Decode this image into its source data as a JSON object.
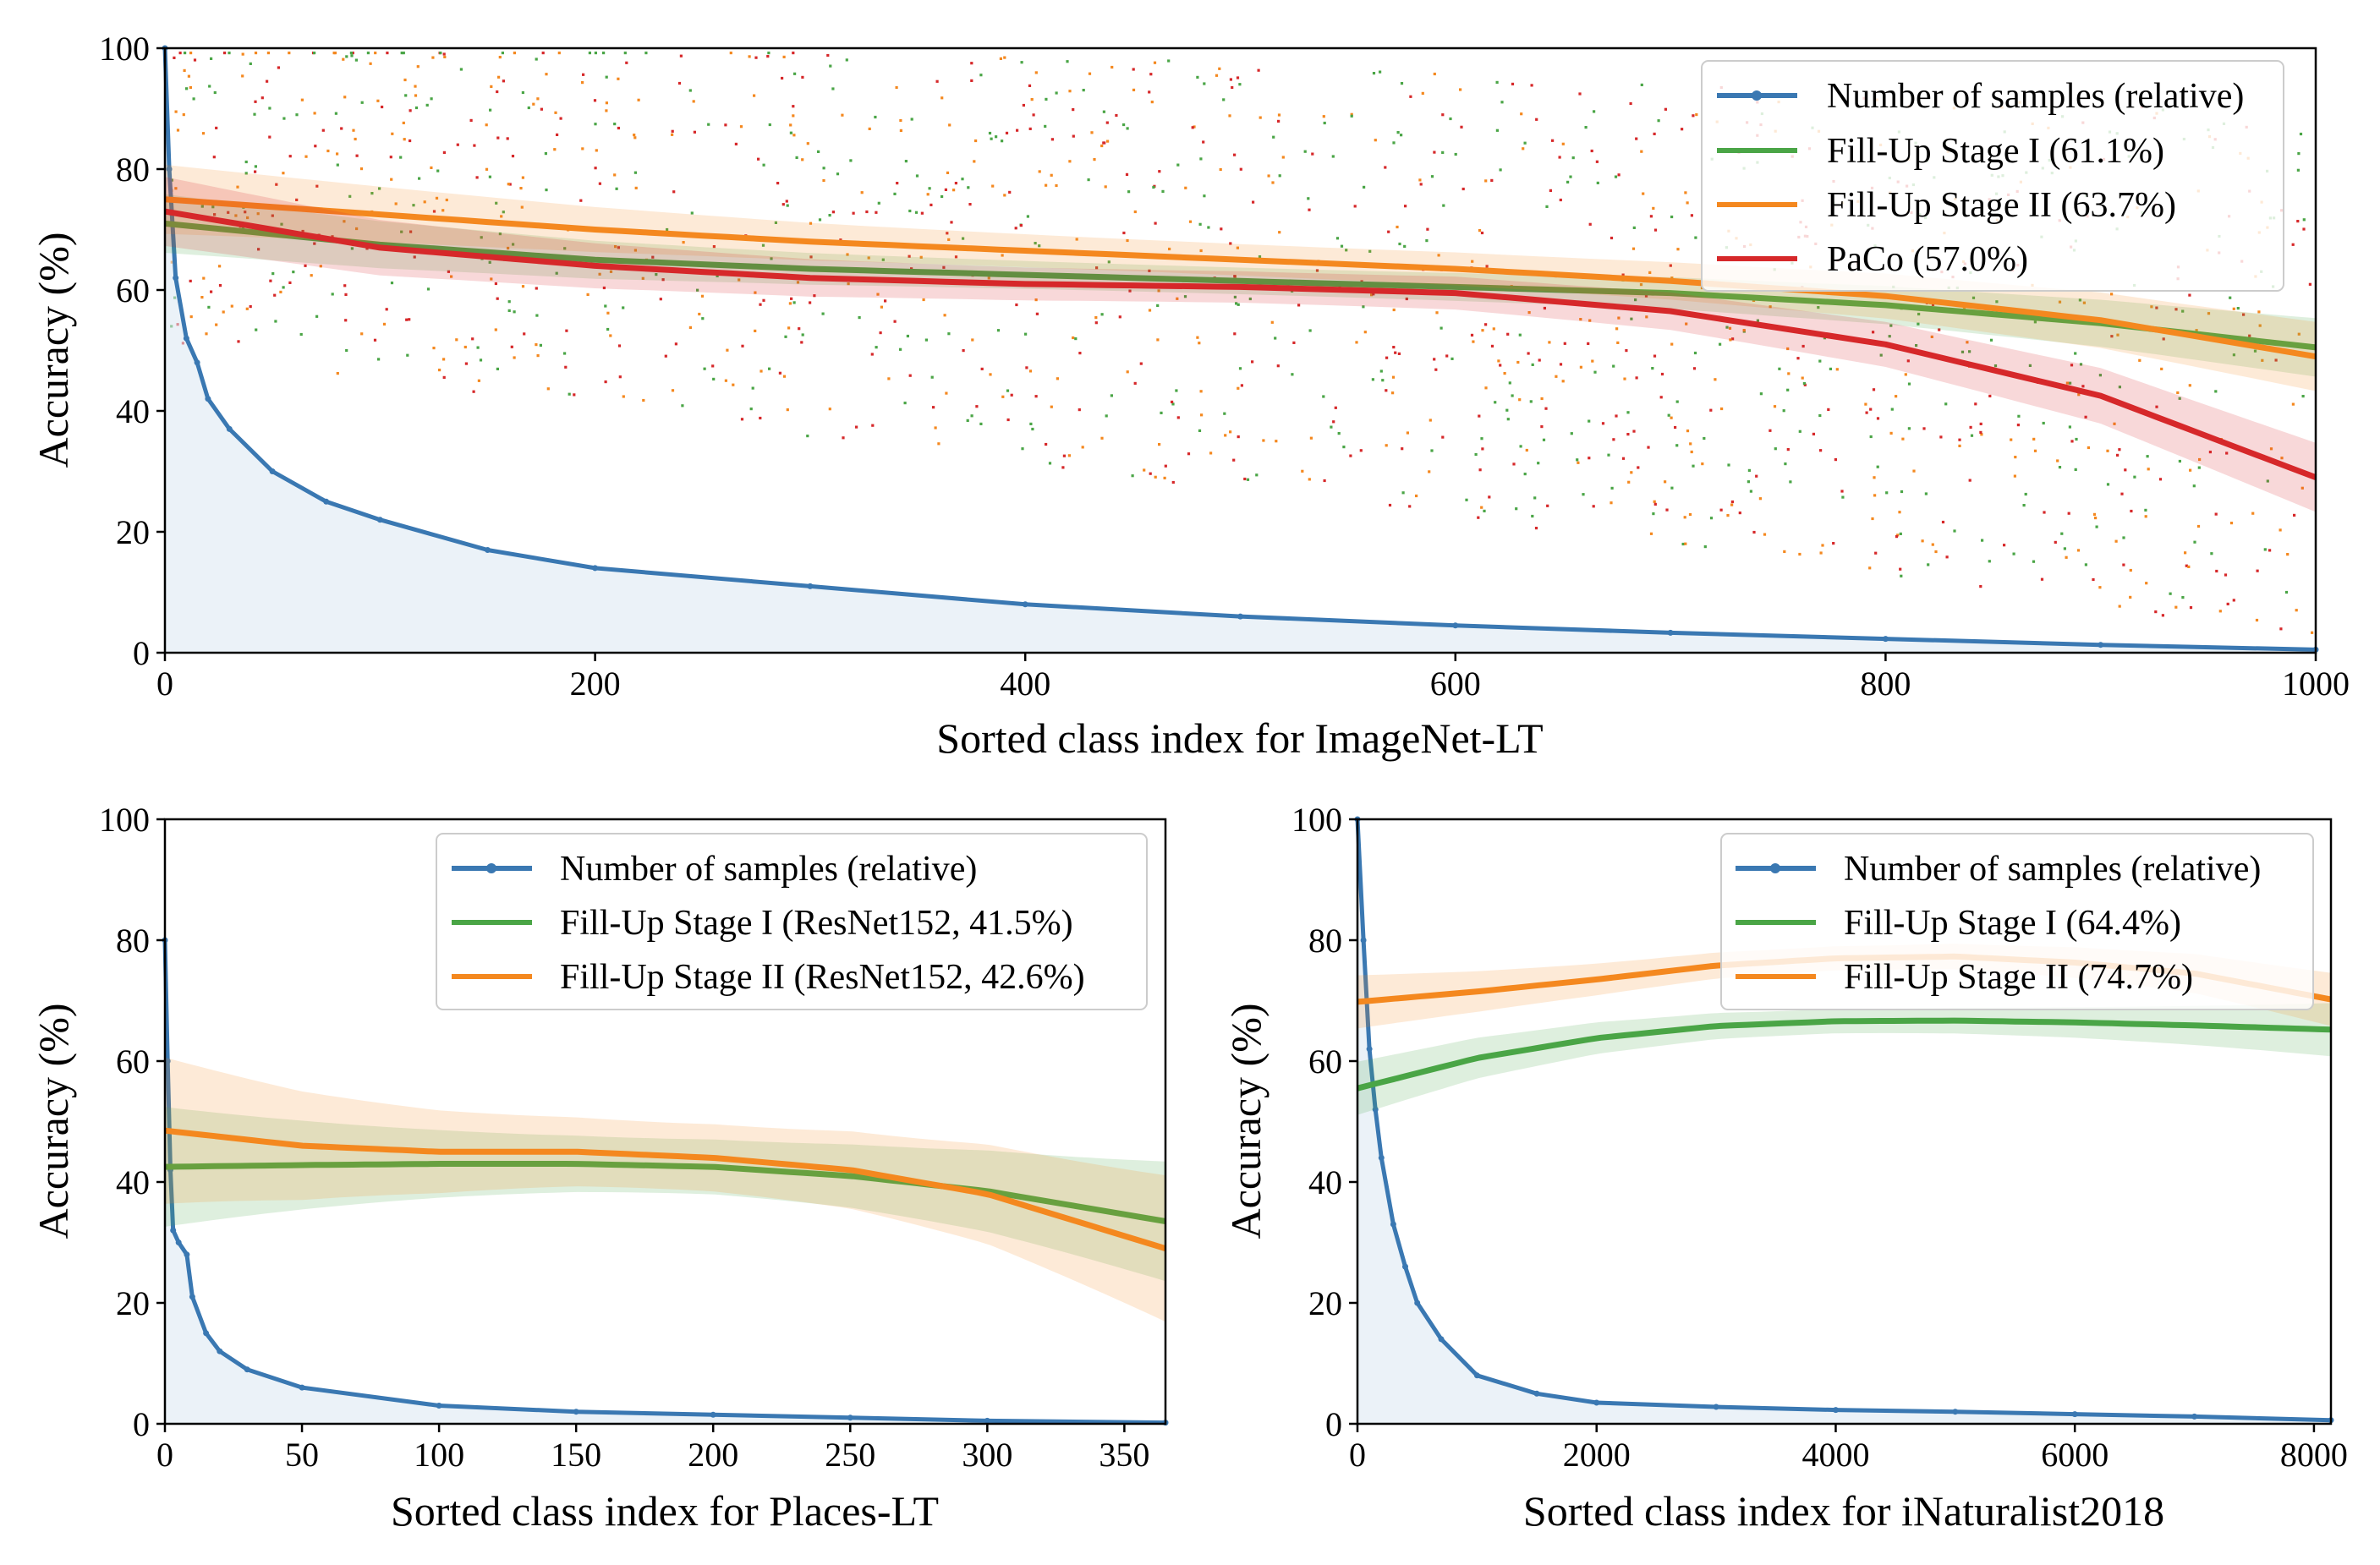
{
  "colors": {
    "samples": "#3a78b2",
    "stage1": "#4aa546",
    "stage2": "#f4881f",
    "paco": "#d6282a",
    "samples_fill": "#dbe7f3"
  },
  "chart_data": [
    {
      "id": "imagenet",
      "type": "line",
      "xlabel": "Sorted class index for ImageNet-LT",
      "ylabel": "Accuracy (%)",
      "xlim": [
        0,
        1000
      ],
      "ylim": [
        0,
        100
      ],
      "xticks": [
        "0",
        "200",
        "400",
        "600",
        "800",
        "1000"
      ],
      "xtick_values": [
        0,
        200,
        400,
        600,
        800,
        1000
      ],
      "yticks": [
        "0",
        "20",
        "40",
        "60",
        "80",
        "100"
      ],
      "ytick_values": [
        0,
        20,
        40,
        60,
        80,
        100
      ],
      "legend_position": "top-right",
      "legend": [
        "Number of samples (relative)",
        "Fill-Up Stage I (61.1%)",
        "Fill-Up Stage II (63.7%)",
        "PaCo (57.0%)"
      ],
      "series": [
        {
          "key": "samples",
          "x": [
            0,
            2,
            5,
            10,
            15,
            20,
            30,
            50,
            75,
            100,
            150,
            200,
            300,
            400,
            500,
            600,
            700,
            800,
            900,
            1000
          ],
          "values": [
            100,
            80,
            62,
            52,
            48,
            42,
            37,
            30,
            25,
            22,
            17,
            14,
            11,
            8,
            6,
            4.5,
            3.3,
            2.3,
            1.3,
            0.5
          ]
        },
        {
          "key": "stage1",
          "x": [
            0,
            100,
            200,
            300,
            400,
            500,
            600,
            700,
            800,
            900,
            1000
          ],
          "values": [
            71,
            67.5,
            65,
            63.5,
            62.5,
            61.5,
            60.5,
            59.5,
            57.5,
            54.5,
            50.5
          ]
        },
        {
          "key": "stage2",
          "x": [
            0,
            100,
            200,
            300,
            400,
            500,
            600,
            700,
            800,
            900,
            1000
          ],
          "values": [
            75,
            72.5,
            70,
            68,
            66.5,
            65,
            63.5,
            61.5,
            59,
            55,
            49
          ]
        },
        {
          "key": "paco",
          "x": [
            0,
            100,
            200,
            300,
            400,
            500,
            600,
            700,
            800,
            900,
            1000
          ],
          "values": [
            73,
            67,
            64,
            62,
            61,
            60.5,
            59.5,
            56.5,
            51,
            42.5,
            29
          ]
        }
      ]
    },
    {
      "id": "places",
      "type": "line",
      "xlabel": "Sorted class index for Places-LT",
      "ylabel": "Accuracy (%)",
      "xlim": [
        0,
        365
      ],
      "ylim": [
        0,
        100
      ],
      "xticks": [
        "0",
        "50",
        "100",
        "150",
        "200",
        "250",
        "300",
        "350"
      ],
      "xtick_values": [
        0,
        50,
        100,
        150,
        200,
        250,
        300,
        350
      ],
      "yticks": [
        "0",
        "20",
        "40",
        "60",
        "80",
        "100"
      ],
      "ytick_values": [
        0,
        20,
        40,
        60,
        80,
        100
      ],
      "legend_position": "top-right",
      "legend": [
        "Number of samples (relative)",
        "Fill-Up Stage I (ResNet152, 41.5%)",
        "Fill-Up Stage II (ResNet152, 42.6%)"
      ],
      "series": [
        {
          "key": "samples",
          "x": [
            0,
            1,
            2,
            3,
            5,
            8,
            10,
            15,
            20,
            30,
            50,
            100,
            150,
            200,
            250,
            300,
            365
          ],
          "values": [
            80,
            60,
            42,
            32,
            30,
            28,
            21,
            15,
            12,
            9,
            6,
            3,
            2,
            1.5,
            1,
            0.5,
            0.2
          ]
        },
        {
          "key": "stage1",
          "x": [
            0,
            50,
            100,
            150,
            200,
            250,
            300,
            365
          ],
          "values": [
            42.5,
            42.8,
            43,
            43,
            42.5,
            41,
            38.5,
            33.5
          ]
        },
        {
          "key": "stage2",
          "x": [
            0,
            50,
            100,
            150,
            200,
            250,
            300,
            365
          ],
          "values": [
            48.5,
            46,
            45,
            45,
            44,
            42,
            38,
            29
          ]
        }
      ]
    },
    {
      "id": "inat",
      "type": "line",
      "xlabel": "Sorted class index for iNaturalist2018",
      "ylabel": "Accuracy (%)",
      "xlim": [
        0,
        8142
      ],
      "ylim": [
        0,
        100
      ],
      "xticks": [
        "0",
        "2000",
        "4000",
        "6000",
        "8000"
      ],
      "xtick_values": [
        0,
        2000,
        4000,
        6000,
        8000
      ],
      "yticks": [
        "0",
        "20",
        "40",
        "60",
        "80",
        "100"
      ],
      "ytick_values": [
        0,
        20,
        40,
        60,
        80,
        100
      ],
      "legend_position": "top-right",
      "legend": [
        "Number of samples (relative)",
        "Fill-Up Stage I (64.4%)",
        "Fill-Up Stage II (74.7%)"
      ],
      "series": [
        {
          "key": "samples",
          "x": [
            0,
            50,
            100,
            150,
            200,
            300,
            400,
            500,
            700,
            1000,
            1500,
            2000,
            3000,
            4000,
            5000,
            6000,
            7000,
            8142
          ],
          "values": [
            100,
            80,
            62,
            52,
            44,
            33,
            26,
            20,
            14,
            8,
            5,
            3.5,
            2.8,
            2.3,
            2,
            1.6,
            1.2,
            0.6
          ]
        },
        {
          "key": "stage1",
          "x": [
            0,
            500,
            1000,
            2000,
            3000,
            4000,
            5000,
            6000,
            7000,
            8142
          ],
          "values": [
            55.5,
            58,
            60.5,
            63.8,
            65.8,
            66.6,
            66.7,
            66.4,
            65.9,
            65.2
          ]
        },
        {
          "key": "stage2",
          "x": [
            0,
            1000,
            2000,
            3000,
            4000,
            5000,
            6000,
            7000,
            8142
          ],
          "values": [
            69.8,
            71.5,
            73.5,
            75.8,
            77,
            77.3,
            76.3,
            74.5,
            70.2
          ]
        }
      ]
    }
  ]
}
